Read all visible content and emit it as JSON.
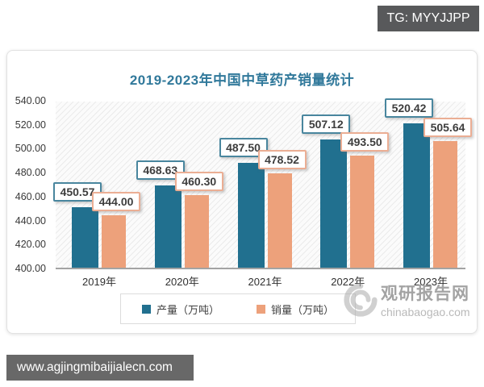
{
  "badge": {
    "text": "TG: MYYJJPP"
  },
  "chart_data": {
    "type": "bar",
    "title": "2019-2023年中国中草药产销量统计",
    "categories": [
      "2019年",
      "2020年",
      "2021年",
      "2022年",
      "2023年"
    ],
    "series": [
      {
        "name": "产量（万吨）",
        "color": "#21708f",
        "values": [
          450.57,
          468.63,
          487.5,
          507.12,
          520.42
        ],
        "labels": [
          "450.57",
          "468.63",
          "487.50",
          "507.12",
          "520.42"
        ]
      },
      {
        "name": "销量（万吨）",
        "color": "#eda17b",
        "values": [
          444.0,
          460.3,
          478.52,
          493.5,
          505.64
        ],
        "labels": [
          "444.00",
          "460.30",
          "478.52",
          "493.50",
          "505.64"
        ]
      }
    ],
    "ylim": [
      400,
      540
    ],
    "ytick_step": 20,
    "yticks": [
      "540.00",
      "520.00",
      "500.00",
      "480.00",
      "460.00",
      "440.00",
      "420.00",
      "400.00"
    ],
    "grid": false,
    "legend_position": "bottom",
    "plot_background": "diagonal-hatch"
  },
  "watermark": {
    "name": "观研报告网",
    "domain": "chinabaogao.com"
  },
  "footer": {
    "url": "www.agjingmibaijialecn.com"
  }
}
